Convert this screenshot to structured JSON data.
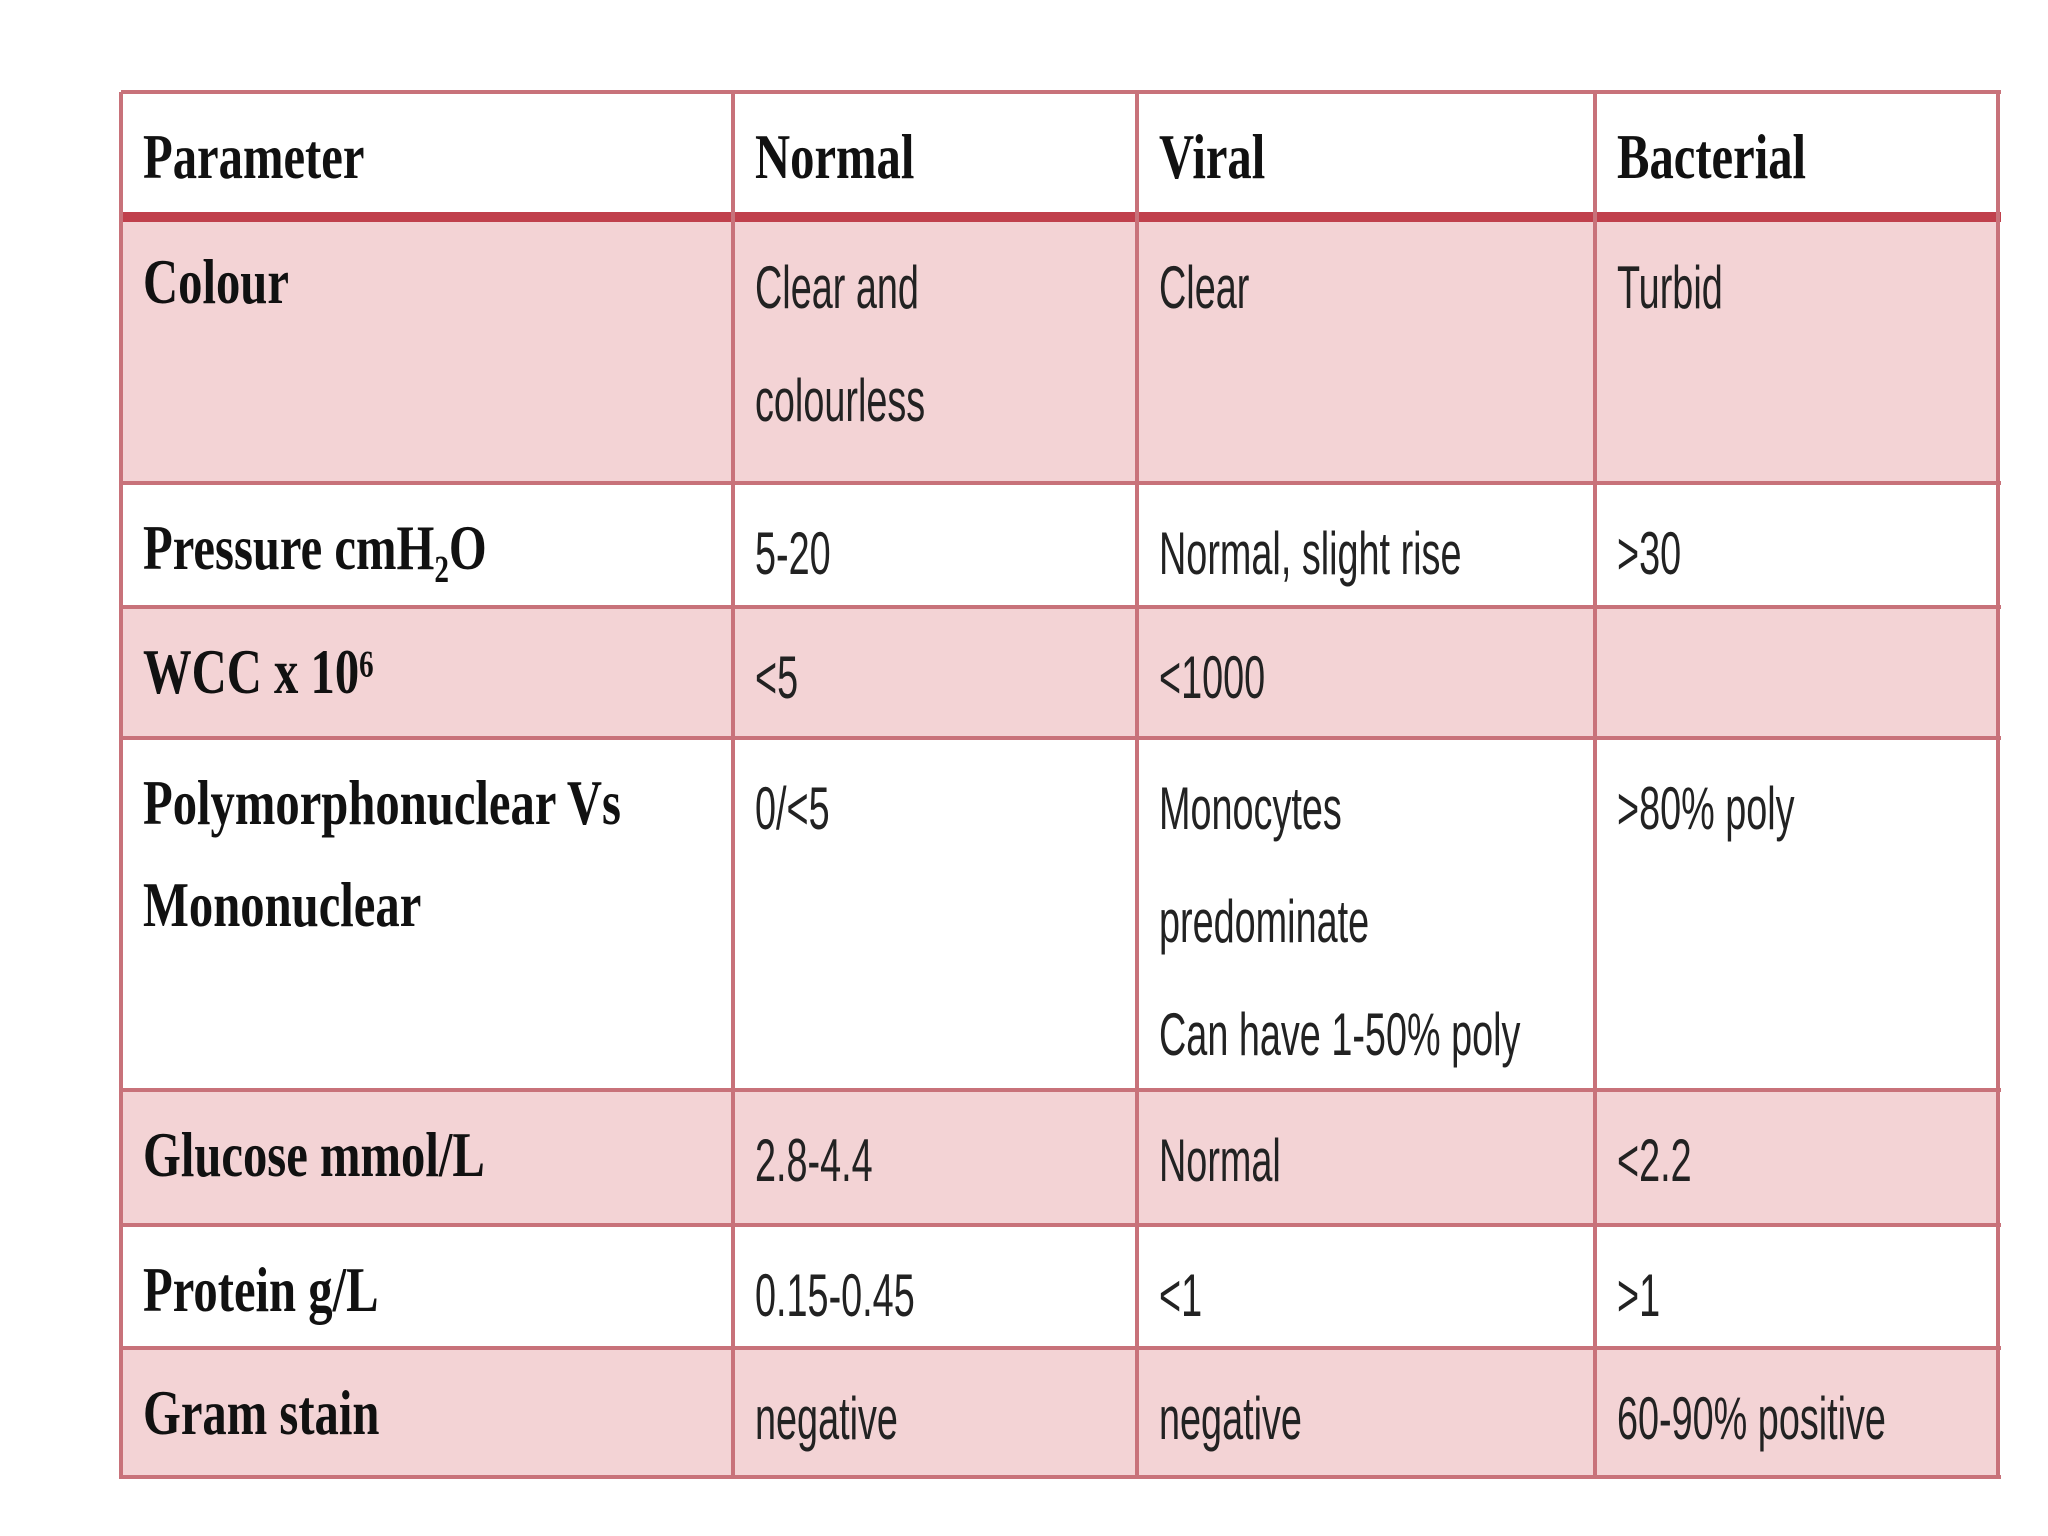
{
  "table": {
    "header": [
      "Parameter",
      "Normal",
      "Viral",
      "Bacterial"
    ],
    "rows": [
      [
        [
          "Colour"
        ],
        [
          "Clear and",
          "colourless"
        ],
        [
          "Clear"
        ],
        [
          "Turbid"
        ]
      ],
      [
        [
          "Pressure cmH₂O"
        ],
        [
          "5-20"
        ],
        [
          "Normal, slight rise"
        ],
        [
          ">30"
        ]
      ],
      [
        [
          "WCC x 10⁶"
        ],
        [
          "<5"
        ],
        [
          "<1000"
        ],
        null
      ],
      [
        [
          "Polymorphonuclear Vs",
          "Mononuclear"
        ],
        [
          "0/<5"
        ],
        [
          "Monocytes",
          "predominate",
          "Can have 1-50% poly"
        ],
        [
          ">80% poly"
        ]
      ],
      [
        [
          "Glucose mmol/L"
        ],
        [
          "2.8-4.4"
        ],
        [
          "Normal"
        ],
        [
          "<2.2"
        ]
      ],
      [
        [
          "Protein g/L"
        ],
        [
          "0.15-0.45"
        ],
        [
          "<1"
        ],
        [
          ">1"
        ]
      ],
      [
        [
          "Gram stain"
        ],
        [
          "negative"
        ],
        [
          "negative"
        ],
        [
          "60-90% positive"
        ]
      ]
    ]
  }
}
